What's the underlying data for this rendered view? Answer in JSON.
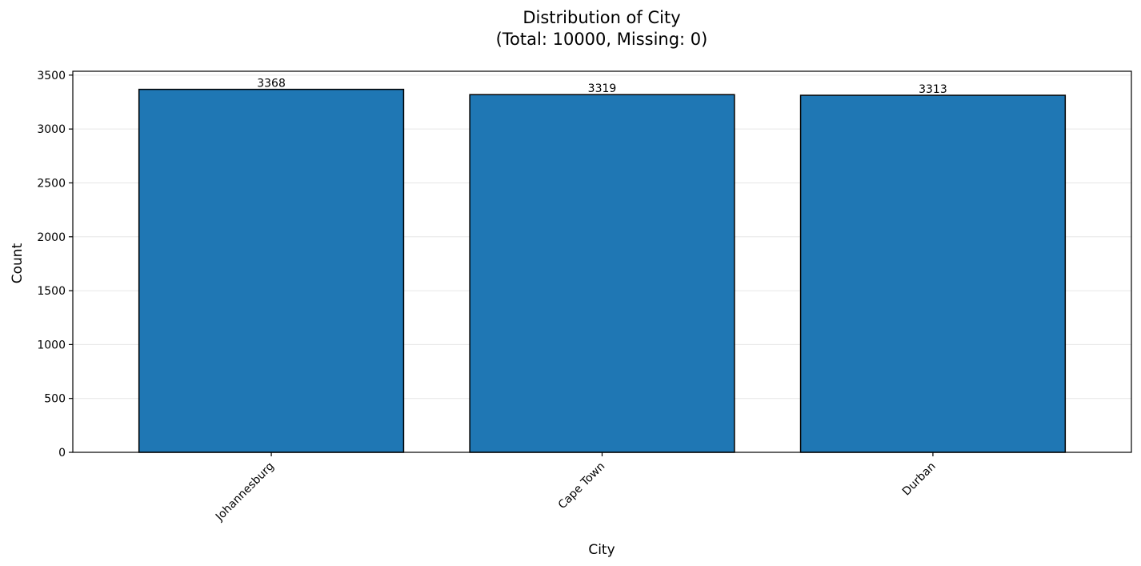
{
  "chart_data": {
    "type": "bar",
    "title": "Distribution of City",
    "subtitle": "(Total: 10000, Missing: 0)",
    "xlabel": "City",
    "ylabel": "Count",
    "categories": [
      "Johannesburg",
      "Cape Town",
      "Durban"
    ],
    "values": [
      3368,
      3319,
      3313
    ],
    "data_labels": [
      "3368",
      "3319",
      "3313"
    ],
    "ylim": [
      0,
      3536
    ],
    "yticks": [
      0,
      500,
      1000,
      1500,
      2000,
      2500,
      3000,
      3500
    ],
    "ytick_labels": [
      "0",
      "500",
      "1000",
      "1500",
      "2000",
      "2500",
      "3000",
      "3500"
    ],
    "grid": "y",
    "legend": "none",
    "colors": {
      "bar_fill": "#1f77b4",
      "bar_edge": "#000000",
      "grid": "#e6e6e6",
      "axes": "#000000"
    }
  }
}
